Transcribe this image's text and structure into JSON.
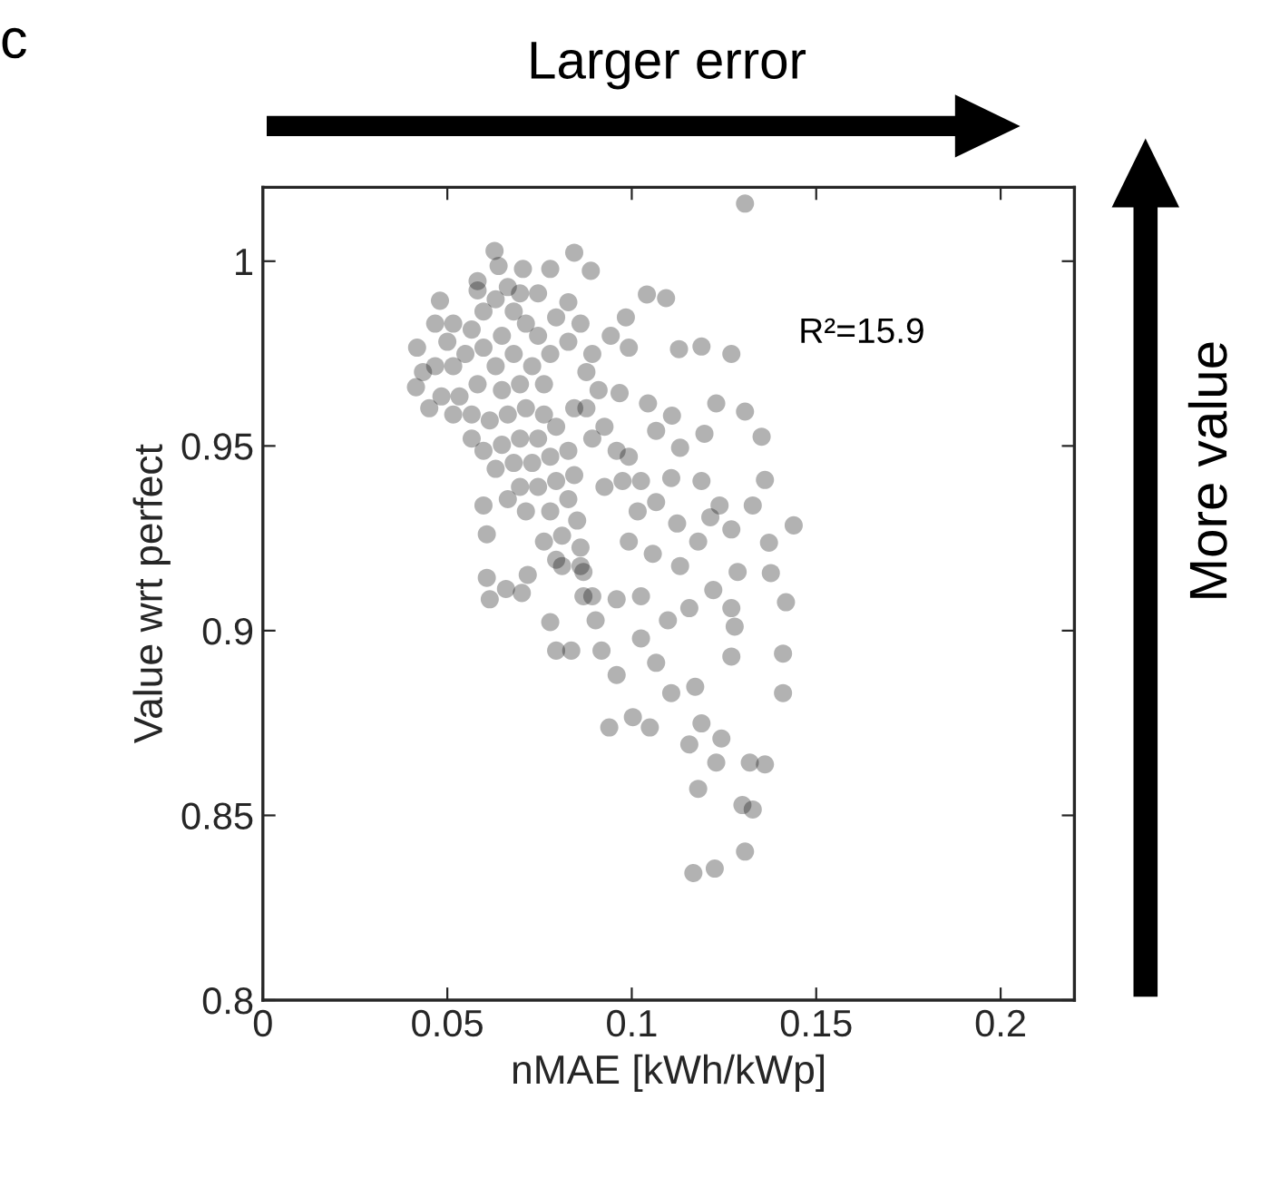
{
  "chart_data": {
    "type": "scatter",
    "xlabel": "nMAE [kWh/kWp]",
    "ylabel": "Value wrt perfect",
    "annotations": [
      "c",
      "Larger error",
      "More value",
      "R²=15.9"
    ],
    "xlim": [
      0,
      0.22
    ],
    "xticks": [
      0,
      0.05,
      0.1,
      0.15,
      0.2
    ],
    "ylim": [
      0.8,
      1.02
    ],
    "yticks": [
      0.8,
      0.85,
      0.9,
      0.95,
      1
    ],
    "grid": false,
    "legend": false,
    "marker": "circle",
    "series": [
      {
        "color": "#000000",
        "x": [
          0.1307,
          0.0628,
          0.0844,
          0.0889,
          0.048,
          0.1041,
          0.1093,
          0.1128,
          0.1189,
          0.127,
          0.0984,
          0.0418,
          0.0415,
          0.1044,
          0.1229,
          0.1307,
          0.1352,
          0.1109,
          0.1066,
          0.1131,
          0.1197,
          0.1361,
          0.1439,
          0.1372,
          0.1377,
          0.1418,
          0.141,
          0.141,
          0.1361,
          0.132,
          0.13,
          0.1328,
          0.1307,
          0.1225,
          0.1167,
          0.118,
          0.1156,
          0.1229,
          0.1243,
          0.1189,
          0.0939,
          0.1003,
          0.1049,
          0.0959,
          0.0795,
          0.0836,
          0.0779,
          0.0918,
          0.0607,
          0.0615,
          0.0659,
          0.0702,
          0.0718,
          0.0607,
          0.0598,
          0.0902,
          0.1025,
          0.1066,
          0.1107,
          0.1172,
          0.127,
          0.1279,
          0.127,
          0.1287,
          0.1221,
          0.1156,
          0.1098,
          0.1025,
          0.0959,
          0.0869,
          0.0869,
          0.0811,
          0.0762,
          0.0852,
          0.0926,
          0.0975,
          0.1025,
          0.1066,
          0.1123,
          0.118,
          0.1213,
          0.127,
          0.1238,
          0.1328,
          0.1189,
          0.1107,
          0.1016,
          0.0992,
          0.1057,
          0.1131,
          0.0959,
          0.0926,
          0.0877,
          0.091,
          0.0967,
          0.0943,
          0.0992,
          0.0877,
          0.0828,
          0.0828,
          0.0779,
          0.0705,
          0.0639,
          0.0582,
          0.0697,
          0.0467,
          0.05,
          0.0516,
          0.0549,
          0.0566,
          0.0598,
          0.0631,
          0.0664,
          0.068,
          0.0713,
          0.0746,
          0.0779,
          0.0795,
          0.0648,
          0.0598,
          0.0631,
          0.068,
          0.073,
          0.0762,
          0.0697,
          0.0648,
          0.0582,
          0.0533,
          0.0484,
          0.0451,
          0.0516,
          0.0566,
          0.0615,
          0.0664,
          0.0713,
          0.0762,
          0.0795,
          0.0746,
          0.0697,
          0.0648,
          0.0598,
          0.0631,
          0.068,
          0.073,
          0.0779,
          0.0828,
          0.0844,
          0.0795,
          0.0746,
          0.0697,
          0.0664,
          0.0713,
          0.0779,
          0.0828,
          0.0811,
          0.0861,
          0.0795,
          0.0861,
          0.0893,
          0.0566,
          0.0516,
          0.0434,
          0.0467,
          0.0582,
          0.0746,
          0.0861,
          0.0893,
          0.0844,
          0.0893,
          0.0992
        ],
        "values": [
          1.0156,
          1.0028,
          1.0023,
          0.9974,
          0.9893,
          0.991,
          0.99,
          0.9762,
          0.9769,
          0.9749,
          0.9848,
          0.9766,
          0.9659,
          0.9615,
          0.9615,
          0.9593,
          0.9525,
          0.9582,
          0.9541,
          0.9495,
          0.9533,
          0.9408,
          0.9285,
          0.9238,
          0.9156,
          0.9077,
          0.8938,
          0.8831,
          0.8638,
          0.8643,
          0.8528,
          0.8516,
          0.8402,
          0.8356,
          0.8344,
          0.8572,
          0.8692,
          0.8643,
          0.8708,
          0.8749,
          0.8738,
          0.8766,
          0.8738,
          0.888,
          0.8946,
          0.8946,
          0.9023,
          0.8946,
          0.9143,
          0.9085,
          0.9113,
          0.9102,
          0.9151,
          0.9261,
          0.9339,
          0.9028,
          0.8979,
          0.8913,
          0.8831,
          0.8848,
          0.893,
          0.9011,
          0.9061,
          0.9159,
          0.911,
          0.9061,
          0.9028,
          0.9093,
          0.9085,
          0.9093,
          0.9159,
          0.9175,
          0.9241,
          0.9298,
          0.9389,
          0.9405,
          0.9405,
          0.9348,
          0.929,
          0.9241,
          0.9307,
          0.9274,
          0.9339,
          0.9339,
          0.9405,
          0.9413,
          0.9323,
          0.9241,
          0.9208,
          0.9175,
          0.9487,
          0.9552,
          0.9602,
          0.9651,
          0.9643,
          0.9798,
          0.9766,
          0.97,
          0.9782,
          0.9889,
          0.9979,
          0.9979,
          0.9987,
          0.9921,
          0.9913,
          0.9831,
          0.9782,
          0.9716,
          0.9749,
          0.9815,
          0.9864,
          0.9897,
          0.993,
          0.9864,
          0.9831,
          0.9798,
          0.9749,
          0.9848,
          0.9798,
          0.9766,
          0.9716,
          0.9749,
          0.9716,
          0.9667,
          0.9667,
          0.9651,
          0.9667,
          0.9634,
          0.9634,
          0.9602,
          0.9585,
          0.9585,
          0.9569,
          0.9585,
          0.9602,
          0.9585,
          0.9552,
          0.952,
          0.952,
          0.9503,
          0.9487,
          0.9438,
          0.9454,
          0.9454,
          0.9471,
          0.9487,
          0.9421,
          0.9405,
          0.9389,
          0.9389,
          0.9356,
          0.9323,
          0.9323,
          0.9356,
          0.9257,
          0.9225,
          0.9192,
          0.9175,
          0.9093,
          0.952,
          0.9831,
          0.97,
          0.9716,
          0.9946,
          0.9913,
          0.9831,
          0.9749,
          0.9602,
          0.952,
          0.9471
        ]
      }
    ]
  }
}
